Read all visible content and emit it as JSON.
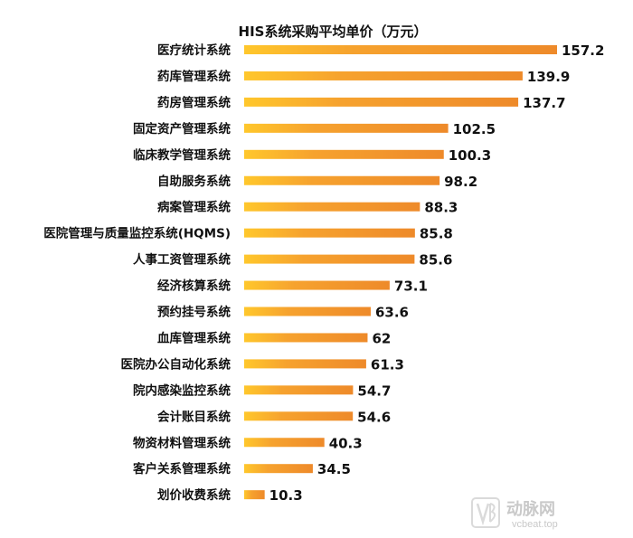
{
  "chart_data": {
    "type": "bar",
    "orientation": "horizontal",
    "title": "HIS系统采购平均单价（万元）",
    "categories": [
      "医疗统计系统",
      "药库管理系统",
      "药房管理系统",
      "固定资产管理系统",
      "临床教学管理系统",
      "自助服务系统",
      "病案管理系统",
      "医院管理与质量监控系统(HQMS)",
      "人事工资管理系统",
      "经济核算系统",
      "预约挂号系统",
      "血库管理系统",
      "医院办公自动化系统",
      "院内感染监控系统",
      "会计账目系统",
      "物资材料管理系统",
      "客户关系管理系统",
      "划价收费系统"
    ],
    "values": [
      157.2,
      139.9,
      137.7,
      102.5,
      100.3,
      98.2,
      88.3,
      85.8,
      85.6,
      73.1,
      63.6,
      62,
      61.3,
      54.7,
      54.6,
      40.3,
      34.5,
      10.3
    ],
    "value_labels": [
      "157.2",
      "139.9",
      "137.7",
      "102.5",
      "100.3",
      "98.2",
      "88.3",
      "85.8",
      "85.6",
      "73.1",
      "63.6",
      "62",
      "61.3",
      "54.7",
      "54.6",
      "40.3",
      "34.5",
      "10.3"
    ],
    "bar_gradient": [
      "#FFC72C",
      "#F6A22E",
      "#EE8A2A"
    ],
    "xlim": [
      0,
      157.2
    ],
    "grid": false,
    "legend": "none"
  },
  "watermark": {
    "text": "动脉网",
    "url_text": "vcbeat.top",
    "color": "#c9c9c9"
  }
}
